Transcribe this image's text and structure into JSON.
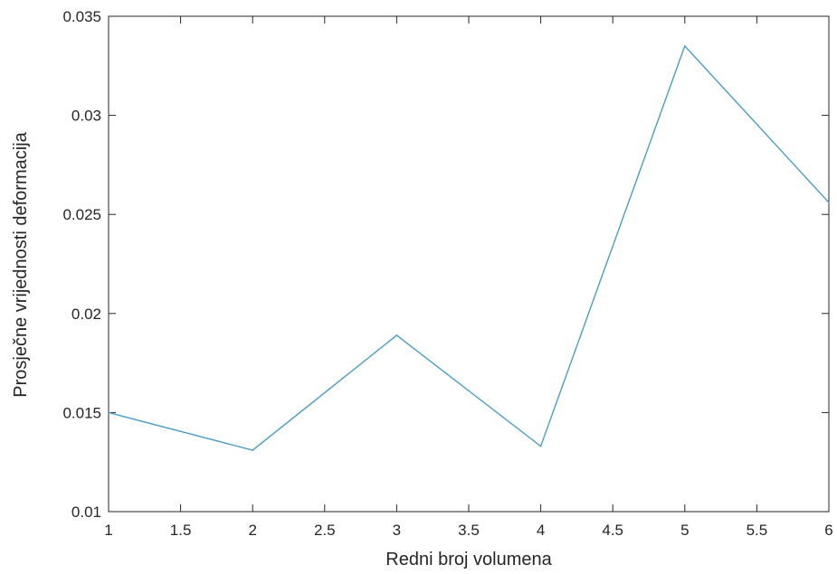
{
  "chart_data": {
    "type": "line",
    "title": "",
    "xlabel": "Redni broj volumena",
    "ylabel": "Prosječne vrijednosti deformacija",
    "xlim": [
      1,
      6
    ],
    "ylim": [
      0.01,
      0.035
    ],
    "xticks": [
      1,
      1.5,
      2,
      2.5,
      3,
      3.5,
      4,
      4.5,
      5,
      5.5,
      6
    ],
    "xtick_labels": [
      "1",
      "1.5",
      "2",
      "2.5",
      "3",
      "3.5",
      "4",
      "4.5",
      "5",
      "5.5",
      "6"
    ],
    "yticks": [
      0.01,
      0.015,
      0.02,
      0.025,
      0.03,
      0.035
    ],
    "ytick_labels": [
      "0.01",
      "0.015",
      "0.02",
      "0.025",
      "0.03",
      "0.035"
    ],
    "grid": false,
    "series": [
      {
        "color": "#4a9ec8",
        "x": [
          1,
          2,
          3,
          4,
          5,
          6
        ],
        "y": [
          0.015,
          0.0131,
          0.0189,
          0.0133,
          0.0335,
          0.0256
        ]
      }
    ]
  }
}
